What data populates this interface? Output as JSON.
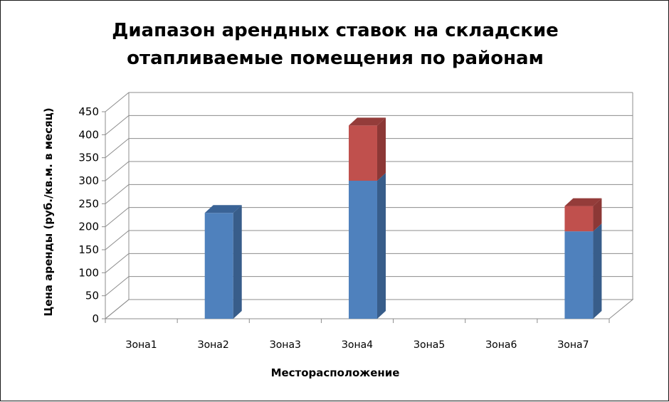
{
  "chart_data": {
    "type": "bar",
    "stacked": true,
    "three_d": true,
    "title_lines": [
      "Диапазон арендных ставок на складские",
      "отапливаемые помещения по районам"
    ],
    "xlabel": "Месторасположение",
    "ylabel": "Цена аренды (руб./кв.м. в месяц)",
    "categories": [
      "Зона1",
      "Зона2",
      "Зона3",
      "Зона4",
      "Зона5",
      "Зона6",
      "Зона7"
    ],
    "series": [
      {
        "values": [
          0,
          230,
          0,
          300,
          0,
          0,
          190
        ],
        "color": "#4F81BD",
        "side_color": "#385D8A",
        "top_color": "#3A6396"
      },
      {
        "values": [
          0,
          0,
          0,
          120,
          0,
          0,
          55
        ],
        "color": "#C0504D",
        "side_color": "#8C3836",
        "top_color": "#943C3A"
      }
    ],
    "ylim": [
      0,
      450
    ],
    "yticks": [
      0,
      50,
      100,
      150,
      200,
      250,
      300,
      350,
      400,
      450
    ],
    "grid": true,
    "legend": "none"
  }
}
